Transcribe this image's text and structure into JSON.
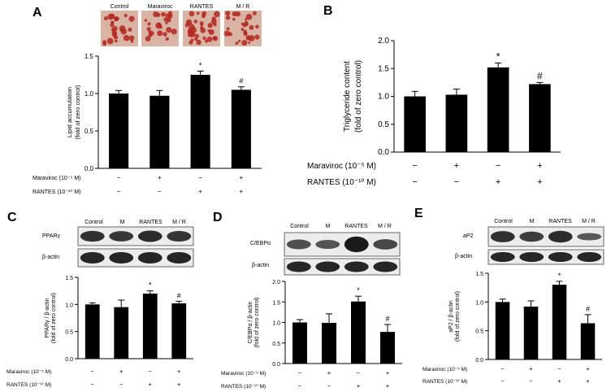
{
  "panel_letters": {
    "A": "A",
    "B": "B",
    "C": "C",
    "D": "D",
    "E": "E"
  },
  "colors": {
    "bar": "#000000",
    "stain_bg": "#d9b3a4",
    "stain_dot": "#b3261e",
    "blot_bg": "#ececec",
    "blot_band": "#1a1a1a"
  },
  "treatment_labels": {
    "maraviroc": "Maraviroc (10⁻⁵ M)",
    "rantes": "RANTES (10⁻¹⁰ M)"
  },
  "signs": {
    "maraviroc": [
      "−",
      "+",
      "−",
      "+"
    ],
    "rantes": [
      "−",
      "−",
      "+",
      "+"
    ]
  },
  "blot_labels": {
    "A_images": [
      "Control",
      "Maraviroc",
      "RANTES",
      "M / R"
    ],
    "C_lanes": [
      "Control",
      "M",
      "RANTES",
      "M / R"
    ],
    "D_lanes": [
      "Control",
      "M",
      "RANTES",
      "M / R"
    ],
    "E_lanes": [
      "Control",
      "M",
      "RANTES",
      "M / R"
    ],
    "C_top": "PPARγ",
    "D_top": "C/EBPα",
    "E_top": "aP2",
    "actin": "β-actin"
  },
  "chart_data": [
    {
      "id": "A",
      "type": "bar",
      "categories": [
        "Control",
        "Maraviroc",
        "RANTES",
        "M / R"
      ],
      "values": [
        1.0,
        0.97,
        1.25,
        1.05
      ],
      "errors": [
        0.04,
        0.07,
        0.05,
        0.04
      ],
      "annotations": [
        "",
        "",
        "*",
        "#"
      ],
      "ylabel": "Lipid accumulation (fold of zero control)",
      "ylim": [
        0,
        1.5
      ],
      "yticks": [
        "0.0",
        "0.5",
        "1.0",
        "1.5"
      ]
    },
    {
      "id": "B",
      "type": "bar",
      "categories": [
        "Control",
        "Maraviroc",
        "RANTES",
        "M / R"
      ],
      "values": [
        1.0,
        1.03,
        1.52,
        1.22
      ],
      "errors": [
        0.09,
        0.1,
        0.08,
        0.03
      ],
      "annotations": [
        "",
        "",
        "*",
        "#"
      ],
      "ylabel": "Triglyceride content (fold of zero control)",
      "ylim": [
        0,
        2.0
      ],
      "yticks": [
        "0.0",
        "0.5",
        "1.0",
        "1.5",
        "2.0"
      ]
    },
    {
      "id": "C",
      "type": "bar",
      "categories": [
        "Control",
        "M",
        "RANTES",
        "M / R"
      ],
      "values": [
        1.0,
        0.95,
        1.2,
        1.02
      ],
      "errors": [
        0.03,
        0.13,
        0.05,
        0.04
      ],
      "annotations": [
        "",
        "",
        "*",
        "#"
      ],
      "ylabel": "PPARγ / β-actin (fold of zero control)",
      "ylim": [
        0,
        1.5
      ],
      "yticks": [
        "0.0",
        "0.5",
        "1.0",
        "1.5"
      ]
    },
    {
      "id": "D",
      "type": "bar",
      "categories": [
        "Control",
        "M",
        "RANTES",
        "M / R"
      ],
      "values": [
        1.0,
        0.99,
        1.51,
        0.77
      ],
      "errors": [
        0.07,
        0.22,
        0.13,
        0.18
      ],
      "annotations": [
        "",
        "",
        "*",
        "#"
      ],
      "ylabel": "C/EBPα / β-actin (fold of zero control)",
      "ylim": [
        0,
        2.0
      ],
      "yticks": [
        "0.0",
        "0.5",
        "1.0",
        "1.5",
        "2.0"
      ]
    },
    {
      "id": "E",
      "type": "bar",
      "categories": [
        "Control",
        "M",
        "RANTES",
        "M / R"
      ],
      "values": [
        1.0,
        0.92,
        1.3,
        0.63
      ],
      "errors": [
        0.05,
        0.1,
        0.06,
        0.15
      ],
      "annotations": [
        "",
        "",
        "*",
        "#"
      ],
      "ylabel": "aP2 / β-actin (fold of zero control)",
      "ylim": [
        0,
        1.5
      ],
      "yticks": [
        "0.0",
        "0.5",
        "1.0",
        "1.5"
      ]
    }
  ]
}
